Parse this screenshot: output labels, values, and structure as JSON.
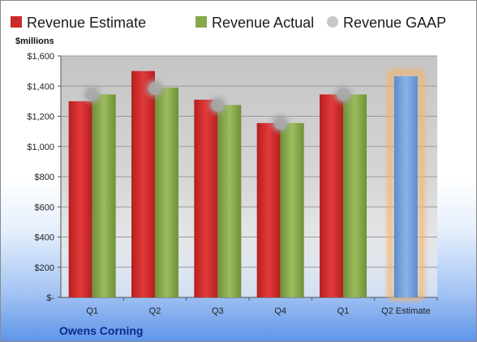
{
  "company": "Owens Corning",
  "chart_data": {
    "type": "bar",
    "ylabel": "$millions",
    "ylim": [
      0,
      1600
    ],
    "y_ticks": [
      0,
      200,
      400,
      600,
      800,
      1000,
      1200,
      1400,
      1600
    ],
    "y_tick_labels": [
      "$-",
      "$200",
      "$400",
      "$600",
      "$800",
      "$1,000",
      "$1,200",
      "$1,400",
      "$1,600"
    ],
    "categories": [
      "Q1",
      "Q2",
      "Q3",
      "Q4",
      "Q1",
      "Q2 Estimate"
    ],
    "grid": true,
    "legend_position": "top",
    "series": [
      {
        "name": "Revenue Estimate",
        "kind": "bar",
        "color": "#cc2b2b",
        "values": [
          1300,
          1500,
          1310,
          1155,
          1345,
          null
        ]
      },
      {
        "name": "Revenue Actual",
        "kind": "bar",
        "color": "#86a84c",
        "values": [
          1345,
          1390,
          1275,
          1155,
          1345,
          null
        ]
      },
      {
        "name": "Revenue GAAP",
        "kind": "marker",
        "color": "#a9a9a9",
        "values": [
          1345,
          1385,
          1275,
          1155,
          1345,
          null
        ]
      },
      {
        "name": "Q2 Estimate",
        "kind": "highlight-bar",
        "color": "#6f9fd8",
        "glow": "#f4b36a",
        "values": [
          null,
          null,
          null,
          null,
          null,
          1465
        ]
      }
    ]
  }
}
